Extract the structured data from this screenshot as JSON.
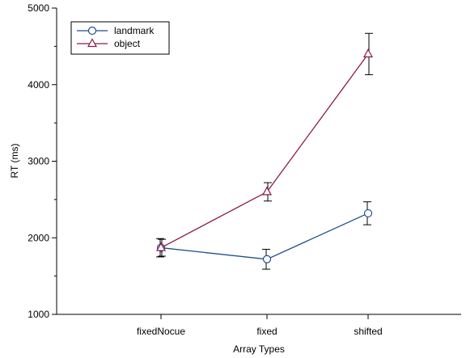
{
  "chart_data": {
    "type": "line",
    "title": "",
    "xlabel": "Array Types",
    "ylabel": "RT (ms)",
    "categories": [
      "fixedNocue",
      "fixed",
      "shifted"
    ],
    "ylim": [
      1000,
      5000
    ],
    "yticks": [
      1000,
      2000,
      3000,
      4000,
      5000
    ],
    "grid": false,
    "legend": "top-left",
    "series": [
      {
        "name": "landmark",
        "color": "#1f4e8c",
        "marker": "circle",
        "values": [
          1870,
          1720,
          2320
        ],
        "errors": [
          120,
          130,
          150
        ]
      },
      {
        "name": "object",
        "color": "#8b1a44",
        "marker": "triangle",
        "values": [
          1870,
          2600,
          4400
        ],
        "errors": [
          110,
          120,
          270
        ]
      }
    ]
  }
}
